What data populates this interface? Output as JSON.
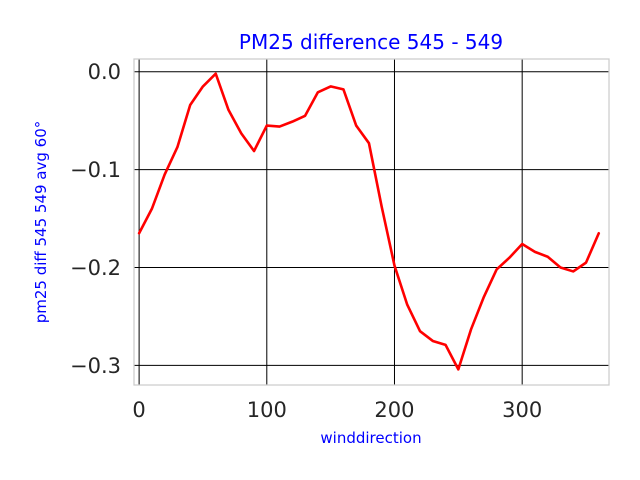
{
  "chart_data": {
    "type": "line",
    "title": "PM25 difference 545 - 549",
    "xlabel": "winddirection",
    "ylabel": "pm25 diff 545 549 avg 60°",
    "xlim": [
      -4,
      368
    ],
    "ylim": [
      -0.32,
      0.013
    ],
    "xticks": [
      0,
      100,
      200,
      300
    ],
    "xtick_labels": [
      "0",
      "100",
      "200",
      "300"
    ],
    "yticks": [
      0.0,
      -0.1,
      -0.2,
      -0.3
    ],
    "ytick_labels": [
      "0.0",
      "−0.1",
      "−0.2",
      "−0.3"
    ],
    "grid": true,
    "series": [
      {
        "color": "#ff0000",
        "x": [
          0,
          10,
          20,
          30,
          40,
          50,
          60,
          70,
          80,
          90,
          100,
          110,
          120,
          130,
          140,
          150,
          160,
          170,
          180,
          190,
          200,
          210,
          220,
          230,
          240,
          250,
          260,
          270,
          280,
          290,
          300,
          310,
          320,
          330,
          340,
          350,
          360
        ],
        "y": [
          -0.165,
          -0.14,
          -0.105,
          -0.077,
          -0.034,
          -0.015,
          -0.002,
          -0.039,
          -0.063,
          -0.081,
          -0.055,
          -0.056,
          -0.051,
          -0.045,
          -0.021,
          -0.015,
          -0.018,
          -0.055,
          -0.073,
          -0.138,
          -0.198,
          -0.238,
          -0.265,
          -0.275,
          -0.279,
          -0.304,
          -0.263,
          -0.23,
          -0.202,
          -0.19,
          -0.176,
          -0.184,
          -0.189,
          -0.2,
          -0.204,
          -0.195,
          -0.165
        ]
      }
    ]
  }
}
